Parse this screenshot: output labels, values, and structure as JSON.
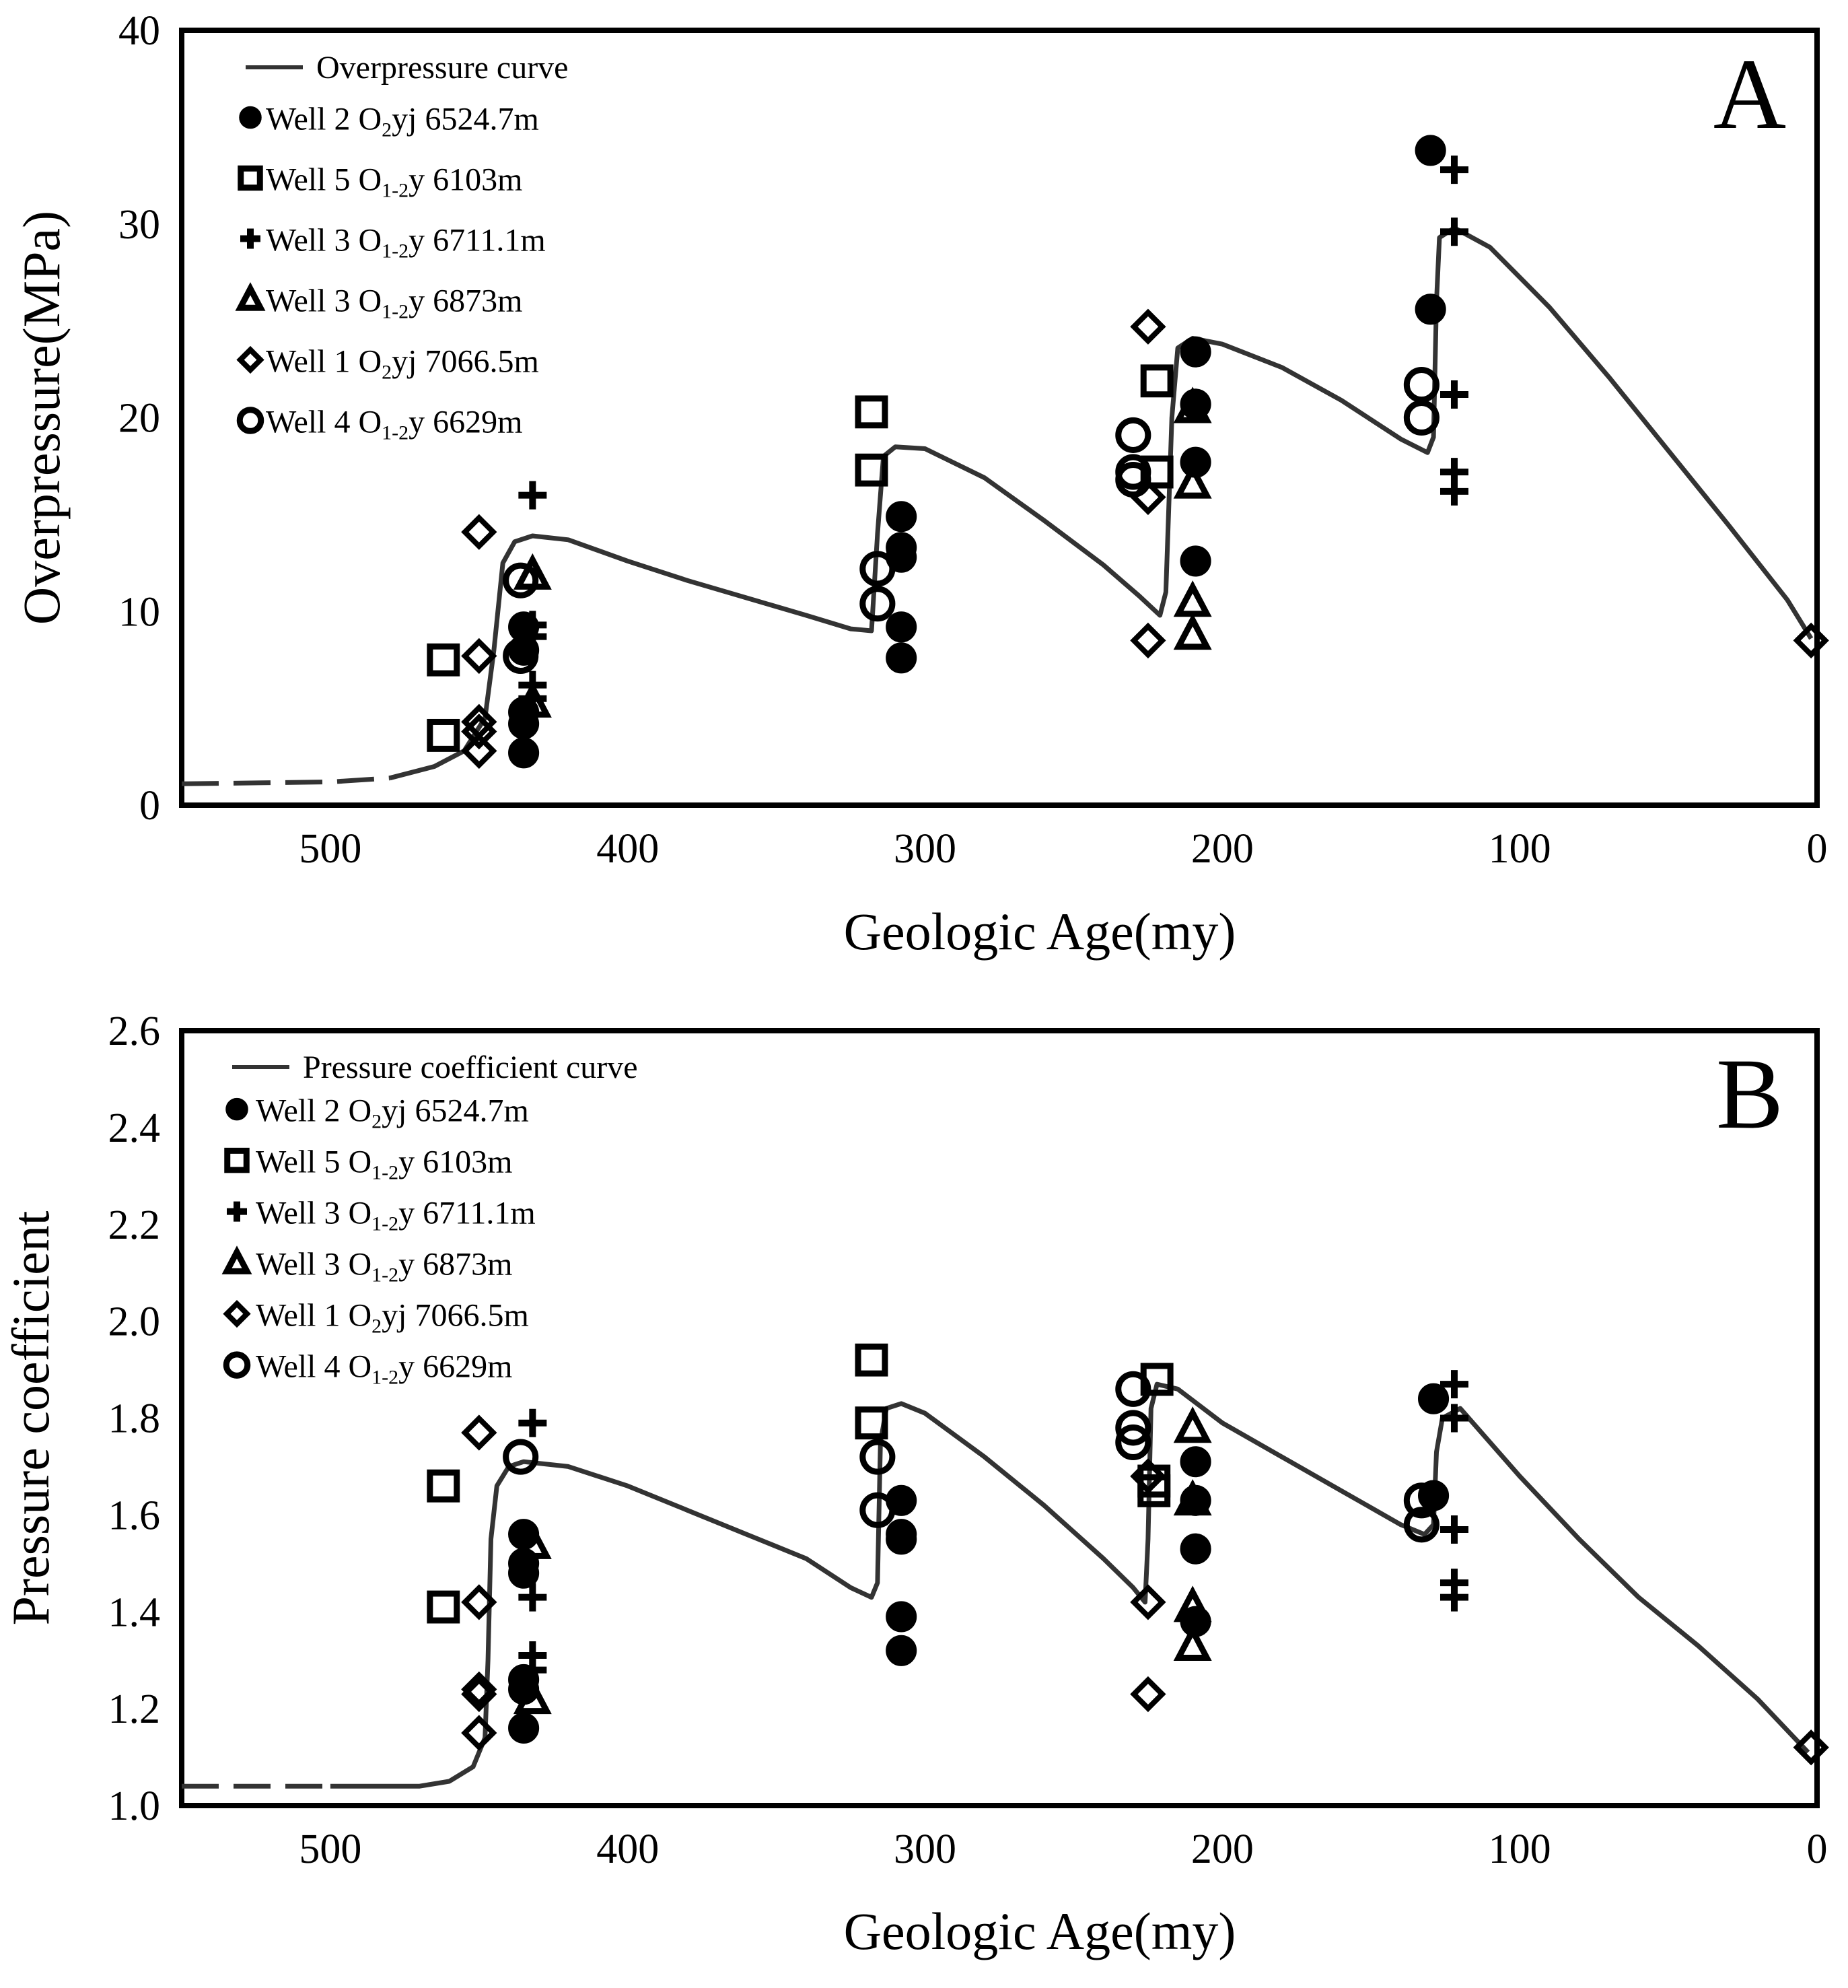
{
  "chart_data": [
    {
      "type": "scatter",
      "panel_label": "A",
      "title": "",
      "xlabel": "Geologic Age(my)",
      "ylabel": "Overpressure(MPa)",
      "xlim": [
        550,
        0
      ],
      "ylim": [
        0,
        40
      ],
      "xticks": [
        500,
        400,
        300,
        200,
        100,
        0
      ],
      "yticks": [
        0,
        10,
        20,
        30,
        40
      ],
      "x_tick_labels": [
        "500",
        "400",
        "300",
        "200",
        "100",
        "0"
      ],
      "y_tick_labels": [
        "0",
        "10",
        "20",
        "30",
        "40"
      ],
      "legend_position": "top-left",
      "curve": {
        "name": "Overpressure curve",
        "dashed_until_age": 480,
        "points": [
          [
            550,
            1.1
          ],
          [
            500,
            1.2
          ],
          [
            480,
            1.4
          ],
          [
            465,
            2.0
          ],
          [
            455,
            2.8
          ],
          [
            448,
            4.5
          ],
          [
            445,
            8
          ],
          [
            442,
            12.5
          ],
          [
            438,
            13.6
          ],
          [
            432,
            13.9
          ],
          [
            420,
            13.7
          ],
          [
            400,
            12.6
          ],
          [
            380,
            11.6
          ],
          [
            360,
            10.7
          ],
          [
            340,
            9.8
          ],
          [
            325,
            9.1
          ],
          [
            318,
            9.0
          ],
          [
            316,
            14
          ],
          [
            314,
            18
          ],
          [
            310,
            18.5
          ],
          [
            300,
            18.4
          ],
          [
            280,
            16.9
          ],
          [
            260,
            14.7
          ],
          [
            240,
            12.4
          ],
          [
            228,
            10.8
          ],
          [
            221,
            9.8
          ],
          [
            219,
            11
          ],
          [
            217,
            20
          ],
          [
            215,
            23.6
          ],
          [
            210,
            24.1
          ],
          [
            200,
            23.8
          ],
          [
            180,
            22.6
          ],
          [
            160,
            20.9
          ],
          [
            140,
            18.9
          ],
          [
            131,
            18.2
          ],
          [
            129,
            19
          ],
          [
            128,
            26
          ],
          [
            127,
            29.3
          ],
          [
            122,
            29.8
          ],
          [
            110,
            28.8
          ],
          [
            90,
            25.7
          ],
          [
            70,
            22.1
          ],
          [
            50,
            18.3
          ],
          [
            30,
            14.5
          ],
          [
            10,
            10.6
          ],
          [
            2,
            8.6
          ]
        ]
      },
      "series": [
        {
          "name": "Well 2 O",
          "sub": "2",
          "rest": "yj 6524.7m",
          "marker": "filled-circle",
          "points": [
            [
              435,
              2.7
            ],
            [
              435,
              4.2
            ],
            [
              435,
              4.8
            ],
            [
              435,
              8.0
            ],
            [
              435,
              9.2
            ],
            [
              308,
              7.6
            ],
            [
              308,
              9.2
            ],
            [
              308,
              12.8
            ],
            [
              308,
              13.3
            ],
            [
              308,
              14.9
            ],
            [
              209,
              12.6
            ],
            [
              209,
              17.7
            ],
            [
              209,
              20.7
            ],
            [
              209,
              23.4
            ],
            [
              130,
              25.6
            ],
            [
              130,
              33.8
            ]
          ]
        },
        {
          "name": "Well 5 O",
          "sub": "1-2",
          "rest": "y 6103m",
          "marker": "open-square",
          "points": [
            [
              462,
              3.6
            ],
            [
              462,
              7.5
            ],
            [
              318,
              17.3
            ],
            [
              318,
              20.3
            ],
            [
              222,
              17.2
            ],
            [
              222,
              21.9
            ]
          ]
        },
        {
          "name": "Well 3 O",
          "sub": "1-2",
          "rest": "y 6711.1m",
          "marker": "plus",
          "points": [
            [
              432,
              5.5
            ],
            [
              432,
              6.2
            ],
            [
              432,
              8.7
            ],
            [
              432,
              9.3
            ],
            [
              432,
              16.0
            ],
            [
              122,
              16.2
            ],
            [
              122,
              17.2
            ],
            [
              122,
              21.2
            ],
            [
              122,
              29.6
            ],
            [
              122,
              32.8
            ]
          ]
        },
        {
          "name": "Well 3 O",
          "sub": "1-2",
          "rest": "y 6873m",
          "marker": "open-triangle",
          "points": [
            [
              432,
              5.3
            ],
            [
              432,
              11.9
            ],
            [
              210,
              8.8
            ],
            [
              210,
              10.5
            ],
            [
              210,
              16.6
            ],
            [
              210,
              20.5
            ]
          ]
        },
        {
          "name": "Well 1 O",
          "sub": "2",
          "rest": "yj 7066.5m",
          "marker": "open-diamond",
          "points": [
            [
              450,
              2.8
            ],
            [
              450,
              3.8
            ],
            [
              450,
              4.3
            ],
            [
              450,
              7.7
            ],
            [
              450,
              14.1
            ],
            [
              225,
              8.5
            ],
            [
              225,
              15.9
            ],
            [
              225,
              24.7
            ],
            [
              2,
              8.5
            ]
          ]
        },
        {
          "name": "Well 4 O",
          "sub": "1-2",
          "rest": "y 6629m",
          "marker": "open-circle",
          "points": [
            [
              436,
              7.7
            ],
            [
              436,
              11.6
            ],
            [
              316,
              10.4
            ],
            [
              316,
              12.2
            ],
            [
              230,
              16.8
            ],
            [
              230,
              17.2
            ],
            [
              230,
              19.1
            ],
            [
              133,
              20.0
            ],
            [
              133,
              21.7
            ]
          ]
        }
      ]
    },
    {
      "type": "scatter",
      "panel_label": "B",
      "title": "",
      "xlabel": "Geologic Age(my)",
      "ylabel": "Pressure coefficient",
      "xlim": [
        550,
        0
      ],
      "ylim": [
        1.0,
        2.6
      ],
      "xticks": [
        500,
        400,
        300,
        200,
        100,
        0
      ],
      "yticks": [
        1.0,
        1.2,
        1.4,
        1.6,
        1.8,
        2.0,
        2.2,
        2.4,
        2.6
      ],
      "x_tick_labels": [
        "500",
        "400",
        "300",
        "200",
        "100",
        "0"
      ],
      "y_tick_labels": [
        "1.0",
        "1.2",
        "1.4",
        "1.6",
        "1.8",
        "2.0",
        "2.2",
        "2.4",
        "2.6"
      ],
      "legend_position": "top-left",
      "curve": {
        "name": "Pressure coefficient curve",
        "dashed_until_age": 480,
        "points": [
          [
            550,
            1.04
          ],
          [
            500,
            1.04
          ],
          [
            470,
            1.04
          ],
          [
            460,
            1.05
          ],
          [
            452,
            1.08
          ],
          [
            448,
            1.14
          ],
          [
            447,
            1.3
          ],
          [
            446,
            1.55
          ],
          [
            444,
            1.66
          ],
          [
            440,
            1.7
          ],
          [
            435,
            1.71
          ],
          [
            420,
            1.7
          ],
          [
            400,
            1.66
          ],
          [
            380,
            1.61
          ],
          [
            360,
            1.56
          ],
          [
            340,
            1.51
          ],
          [
            325,
            1.45
          ],
          [
            318,
            1.43
          ],
          [
            316,
            1.46
          ],
          [
            315,
            1.75
          ],
          [
            313,
            1.82
          ],
          [
            308,
            1.83
          ],
          [
            300,
            1.81
          ],
          [
            280,
            1.72
          ],
          [
            260,
            1.62
          ],
          [
            240,
            1.51
          ],
          [
            230,
            1.45
          ],
          [
            226,
            1.42
          ],
          [
            225,
            1.55
          ],
          [
            224,
            1.82
          ],
          [
            222,
            1.87
          ],
          [
            215,
            1.86
          ],
          [
            200,
            1.79
          ],
          [
            180,
            1.72
          ],
          [
            160,
            1.65
          ],
          [
            140,
            1.58
          ],
          [
            132,
            1.56
          ],
          [
            129,
            1.58
          ],
          [
            128,
            1.73
          ],
          [
            126,
            1.8
          ],
          [
            120,
            1.82
          ],
          [
            100,
            1.68
          ],
          [
            80,
            1.55
          ],
          [
            60,
            1.43
          ],
          [
            40,
            1.33
          ],
          [
            20,
            1.22
          ],
          [
            3,
            1.11
          ]
        ]
      },
      "series": [
        {
          "name": "Well 2 O",
          "sub": "2",
          "rest": "yj 6524.7m",
          "marker": "filled-circle",
          "points": [
            [
              435,
              1.16
            ],
            [
              435,
              1.24
            ],
            [
              435,
              1.26
            ],
            [
              435,
              1.48
            ],
            [
              435,
              1.5
            ],
            [
              435,
              1.56
            ],
            [
              308,
              1.32
            ],
            [
              308,
              1.39
            ],
            [
              308,
              1.55
            ],
            [
              308,
              1.56
            ],
            [
              308,
              1.63
            ],
            [
              209,
              1.38
            ],
            [
              209,
              1.53
            ],
            [
              209,
              1.63
            ],
            [
              209,
              1.71
            ],
            [
              129,
              1.64
            ],
            [
              129,
              1.84
            ]
          ]
        },
        {
          "name": "Well 5 O",
          "sub": "1-2",
          "rest": "y 6103m",
          "marker": "open-square",
          "points": [
            [
              462,
              1.41
            ],
            [
              462,
              1.66
            ],
            [
              318,
              1.79
            ],
            [
              318,
              1.92
            ],
            [
              223,
              1.65
            ],
            [
              223,
              1.67
            ],
            [
              222,
              1.88
            ]
          ]
        },
        {
          "name": "Well 3 O",
          "sub": "1-2",
          "rest": "y 6711.1m",
          "marker": "plus",
          "points": [
            [
              432,
              1.28
            ],
            [
              432,
              1.31
            ],
            [
              432,
              1.43
            ],
            [
              432,
              1.79
            ],
            [
              122,
              1.43
            ],
            [
              122,
              1.46
            ],
            [
              122,
              1.57
            ],
            [
              122,
              1.8
            ],
            [
              122,
              1.87
            ]
          ]
        },
        {
          "name": "Well 3 O",
          "sub": "1-2",
          "rest": "y 6873m",
          "marker": "open-triangle",
          "points": [
            [
              432,
              1.22
            ],
            [
              432,
              1.54
            ],
            [
              210,
              1.33
            ],
            [
              210,
              1.41
            ],
            [
              210,
              1.63
            ],
            [
              210,
              1.78
            ]
          ]
        },
        {
          "name": "Well 1 O",
          "sub": "2",
          "rest": "yj 7066.5m",
          "marker": "open-diamond",
          "points": [
            [
              450,
              1.15
            ],
            [
              450,
              1.23
            ],
            [
              450,
              1.24
            ],
            [
              450,
              1.42
            ],
            [
              450,
              1.77
            ],
            [
              225,
              1.23
            ],
            [
              225,
              1.42
            ],
            [
              225,
              1.68
            ],
            [
              2,
              1.12
            ]
          ]
        },
        {
          "name": "Well 4 O",
          "sub": "1-2",
          "rest": "y 6629m",
          "marker": "open-circle",
          "points": [
            [
              436,
              1.72
            ],
            [
              316,
              1.61
            ],
            [
              316,
              1.72
            ],
            [
              230,
              1.75
            ],
            [
              230,
              1.78
            ],
            [
              230,
              1.86
            ],
            [
              133,
              1.58
            ],
            [
              133,
              1.63
            ]
          ]
        }
      ]
    }
  ]
}
